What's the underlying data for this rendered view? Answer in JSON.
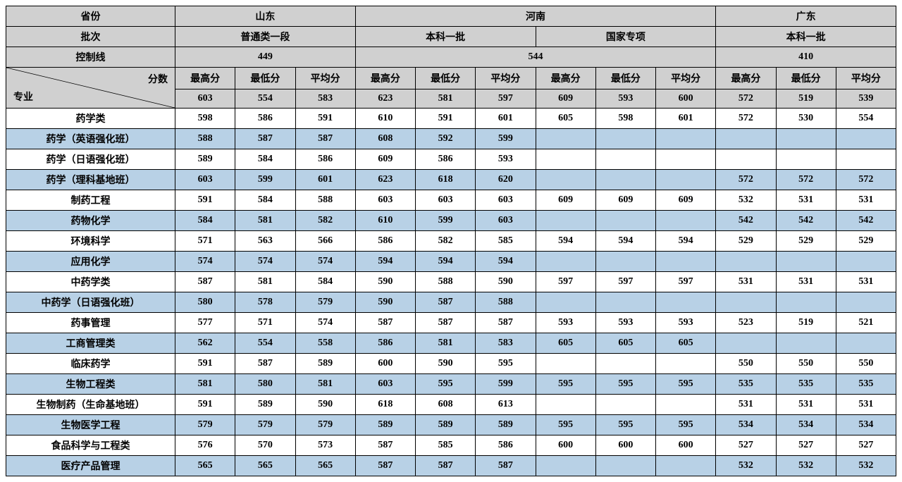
{
  "colors": {
    "header_bg": "#d0d0d0",
    "row_alt_blue": "#b8d1e6",
    "row_white": "#ffffff",
    "border": "#000000",
    "text": "#000000"
  },
  "header": {
    "province_label": "省份",
    "batch_label": "批次",
    "control_label": "控制线",
    "score_label": "分数",
    "major_label": "专业",
    "provinces": {
      "sd": "山东",
      "hn": "河南",
      "gd": "广东"
    },
    "batches": {
      "sd": "普通类一段",
      "hn1": "本科一批",
      "hn2": "国家专项",
      "gd": "本科一批"
    },
    "control_lines": {
      "sd": "449",
      "hn": "544",
      "gd": "410"
    },
    "score_cols": {
      "max": "最高分",
      "min": "最低分",
      "avg": "平均分"
    },
    "overall": {
      "sd": [
        "603",
        "554",
        "583"
      ],
      "hn1": [
        "623",
        "581",
        "597"
      ],
      "hn2": [
        "609",
        "593",
        "600"
      ],
      "gd": [
        "572",
        "519",
        "539"
      ]
    }
  },
  "rows": [
    {
      "label": "药学类",
      "sd": [
        "598",
        "586",
        "591"
      ],
      "hn1": [
        "610",
        "591",
        "601"
      ],
      "hn2": [
        "605",
        "598",
        "601"
      ],
      "gd": [
        "572",
        "530",
        "554"
      ]
    },
    {
      "label": "药学（英语强化班）",
      "sd": [
        "588",
        "587",
        "587"
      ],
      "hn1": [
        "608",
        "592",
        "599"
      ],
      "hn2": [
        "",
        "",
        ""
      ],
      "gd": [
        "",
        "",
        ""
      ]
    },
    {
      "label": "药学（日语强化班）",
      "sd": [
        "589",
        "584",
        "586"
      ],
      "hn1": [
        "609",
        "586",
        "593"
      ],
      "hn2": [
        "",
        "",
        ""
      ],
      "gd": [
        "",
        "",
        ""
      ]
    },
    {
      "label": "药学（理科基地班）",
      "sd": [
        "603",
        "599",
        "601"
      ],
      "hn1": [
        "623",
        "618",
        "620"
      ],
      "hn2": [
        "",
        "",
        ""
      ],
      "gd": [
        "572",
        "572",
        "572"
      ]
    },
    {
      "label": "制药工程",
      "sd": [
        "591",
        "584",
        "588"
      ],
      "hn1": [
        "603",
        "603",
        "603"
      ],
      "hn2": [
        "609",
        "609",
        "609"
      ],
      "gd": [
        "532",
        "531",
        "531"
      ]
    },
    {
      "label": "药物化学",
      "sd": [
        "584",
        "581",
        "582"
      ],
      "hn1": [
        "610",
        "599",
        "603"
      ],
      "hn2": [
        "",
        "",
        ""
      ],
      "gd": [
        "542",
        "542",
        "542"
      ]
    },
    {
      "label": "环境科学",
      "sd": [
        "571",
        "563",
        "566"
      ],
      "hn1": [
        "586",
        "582",
        "585"
      ],
      "hn2": [
        "594",
        "594",
        "594"
      ],
      "gd": [
        "529",
        "529",
        "529"
      ]
    },
    {
      "label": "应用化学",
      "sd": [
        "574",
        "574",
        "574"
      ],
      "hn1": [
        "594",
        "594",
        "594"
      ],
      "hn2": [
        "",
        "",
        ""
      ],
      "gd": [
        "",
        "",
        ""
      ]
    },
    {
      "label": "中药学类",
      "sd": [
        "587",
        "581",
        "584"
      ],
      "hn1": [
        "590",
        "588",
        "590"
      ],
      "hn2": [
        "597",
        "597",
        "597"
      ],
      "gd": [
        "531",
        "531",
        "531"
      ]
    },
    {
      "label": "中药学（日语强化班）",
      "sd": [
        "580",
        "578",
        "579"
      ],
      "hn1": [
        "590",
        "587",
        "588"
      ],
      "hn2": [
        "",
        "",
        ""
      ],
      "gd": [
        "",
        "",
        ""
      ]
    },
    {
      "label": "药事管理",
      "sd": [
        "577",
        "571",
        "574"
      ],
      "hn1": [
        "587",
        "587",
        "587"
      ],
      "hn2": [
        "593",
        "593",
        "593"
      ],
      "gd": [
        "523",
        "519",
        "521"
      ]
    },
    {
      "label": "工商管理类",
      "sd": [
        "562",
        "554",
        "558"
      ],
      "hn1": [
        "586",
        "581",
        "583"
      ],
      "hn2": [
        "605",
        "605",
        "605"
      ],
      "gd": [
        "",
        "",
        ""
      ]
    },
    {
      "label": "临床药学",
      "sd": [
        "591",
        "587",
        "589"
      ],
      "hn1": [
        "600",
        "590",
        "595"
      ],
      "hn2": [
        "",
        "",
        ""
      ],
      "gd": [
        "550",
        "550",
        "550"
      ]
    },
    {
      "label": "生物工程类",
      "sd": [
        "581",
        "580",
        "581"
      ],
      "hn1": [
        "603",
        "595",
        "599"
      ],
      "hn2": [
        "595",
        "595",
        "595"
      ],
      "gd": [
        "535",
        "535",
        "535"
      ]
    },
    {
      "label": "生物制药（生命基地班）",
      "sd": [
        "591",
        "589",
        "590"
      ],
      "hn1": [
        "618",
        "608",
        "613"
      ],
      "hn2": [
        "",
        "",
        ""
      ],
      "gd": [
        "531",
        "531",
        "531"
      ]
    },
    {
      "label": "生物医学工程",
      "sd": [
        "579",
        "579",
        "579"
      ],
      "hn1": [
        "589",
        "589",
        "589"
      ],
      "hn2": [
        "595",
        "595",
        "595"
      ],
      "gd": [
        "534",
        "534",
        "534"
      ]
    },
    {
      "label": "食品科学与工程类",
      "sd": [
        "576",
        "570",
        "573"
      ],
      "hn1": [
        "587",
        "585",
        "586"
      ],
      "hn2": [
        "600",
        "600",
        "600"
      ],
      "gd": [
        "527",
        "527",
        "527"
      ]
    },
    {
      "label": "医疗产品管理",
      "sd": [
        "565",
        "565",
        "565"
      ],
      "hn1": [
        "587",
        "587",
        "587"
      ],
      "hn2": [
        "",
        "",
        ""
      ],
      "gd": [
        "532",
        "532",
        "532"
      ]
    }
  ]
}
